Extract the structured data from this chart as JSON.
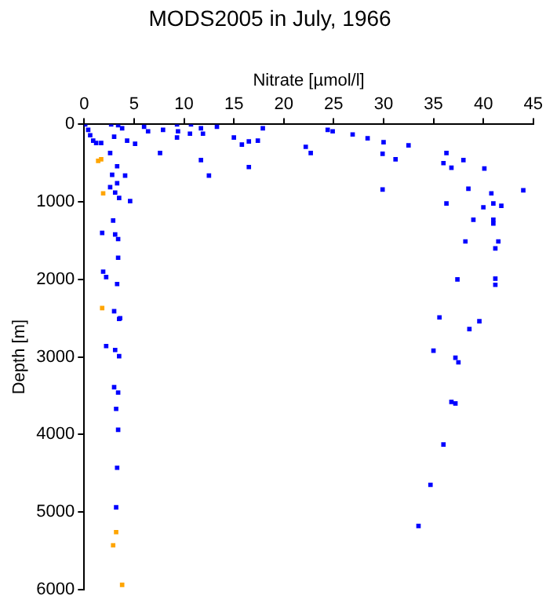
{
  "chart_data": {
    "type": "scatter",
    "title": "MODS2005 in July, 1966",
    "xlabel": "Nitrate [µmol/l]",
    "ylabel": "Depth [m]",
    "xlim": [
      0,
      45
    ],
    "xticks": [
      0,
      5,
      10,
      15,
      20,
      25,
      30,
      35,
      40,
      45
    ],
    "ylim": [
      6000,
      0
    ],
    "yticks": [
      0,
      1000,
      2000,
      3000,
      4000,
      5000,
      6000
    ],
    "grid": false,
    "legend": false,
    "marker": "square",
    "series": [
      {
        "color": "#0000ff",
        "x": [
          0.1,
          0.4,
          0.6,
          0.9,
          1.2,
          1.7,
          2.7,
          3.4,
          3.8,
          3.0,
          4.3,
          5.1,
          6.0,
          6.4,
          7.9,
          7.6,
          9.3,
          9.4,
          9.3,
          10.7,
          10.6,
          11.7,
          11.9,
          13.3,
          11.7,
          12.5,
          15.0,
          15.8,
          16.5,
          17.4,
          17.9,
          16.5,
          2.6,
          3.3,
          2.8,
          4.1,
          3.3,
          2.6,
          3.1,
          3.5,
          4.6,
          2.9,
          3.1,
          3.4,
          1.8,
          3.4,
          1.9,
          2.2,
          3.3,
          3.0,
          3.6,
          3.5,
          2.2,
          3.1,
          3.5,
          3.0,
          3.4,
          3.2,
          3.4,
          3.3,
          3.2,
          24.4,
          24.9,
          26.9,
          28.4,
          30.0,
          32.5,
          22.2,
          22.7,
          29.9,
          31.2,
          36.3,
          36.0,
          36.8,
          38.0,
          40.1,
          29.9,
          38.5,
          44.0,
          40.8,
          36.3,
          40.0,
          41.0,
          41.8,
          39.0,
          41.0,
          41.0,
          38.2,
          41.5,
          41.2,
          37.4,
          41.2,
          41.2,
          35.6,
          39.6,
          38.6,
          35.0,
          37.2,
          37.5,
          36.8,
          37.2,
          36.0,
          34.7,
          33.5
        ],
        "values": [
          0,
          70,
          140,
          210,
          240,
          240,
          0,
          10,
          50,
          160,
          210,
          250,
          30,
          90,
          70,
          370,
          0,
          90,
          170,
          0,
          120,
          50,
          120,
          30,
          460,
          660,
          170,
          260,
          220,
          210,
          50,
          550,
          370,
          540,
          650,
          660,
          760,
          810,
          880,
          950,
          990,
          1240,
          1420,
          1480,
          1400,
          1720,
          1900,
          1970,
          2060,
          2410,
          2500,
          2510,
          2860,
          2910,
          2990,
          3390,
          3460,
          3670,
          3940,
          4430,
          4940,
          70,
          90,
          130,
          180,
          230,
          270,
          290,
          370,
          380,
          450,
          370,
          500,
          560,
          460,
          570,
          840,
          830,
          850,
          890,
          1020,
          1070,
          1020,
          1050,
          1230,
          1230,
          1280,
          1510,
          1510,
          1600,
          2000,
          1990,
          2070,
          2490,
          2540,
          2640,
          2920,
          3010,
          3070,
          3580,
          3600,
          4130,
          4650,
          5180
        ]
      },
      {
        "color": "#ffa500",
        "x": [
          1.7,
          1.4,
          1.9,
          1.8,
          3.2,
          2.9,
          3.8
        ],
        "values": [
          450,
          470,
          890,
          2370,
          5260,
          5430,
          5940
        ]
      }
    ]
  }
}
